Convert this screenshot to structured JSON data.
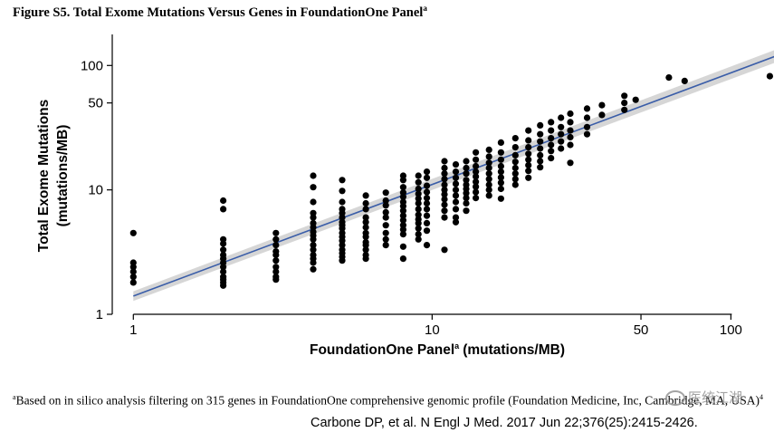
{
  "figure": {
    "title": "Figure S5. Total Exome Mutations Versus Genes in FoundationOne Panel",
    "title_superscript": "a"
  },
  "footnote": {
    "marker": "a",
    "text": "Based on in silico analysis filtering on 315 genes in FoundationOne comprehensive genomic profile (Foundation Medicine, Inc, Cambridge, MA, USA)",
    "ref": "4"
  },
  "citation": "Carbone DP, et al. N Engl J Med. 2017 Jun 22;376(25):2415-2426.",
  "watermark": "医统江湖",
  "chart_data": {
    "type": "scatter",
    "title": "Figure S5. Total Exome Mutations Versus Genes in FoundationOne Panel",
    "xlabel": "FoundationOne Panel",
    "xlabel_superscript": "a",
    "xlabel_unit": "(mutations/MB)",
    "ylabel_line1": "Total Exome Mutations",
    "ylabel_line2": "(mutations/MB)",
    "x_scale": "log",
    "y_scale": "log",
    "xlim": [
      0.85,
      130
    ],
    "ylim": [
      1,
      190
    ],
    "x_ticks": [
      1,
      10,
      50,
      100
    ],
    "x_tick_labels": [
      "1",
      "10",
      "50",
      "100"
    ],
    "y_ticks": [
      1,
      10,
      50,
      100
    ],
    "y_tick_labels": [
      "1",
      "10",
      "50",
      "100"
    ],
    "grid": false,
    "legend": "none",
    "point_color": "#000000",
    "fit_line_color": "#3a5da8",
    "ci_band_color": "#cfcfcf",
    "fit_line": {
      "x": [
        1,
        140
      ],
      "y": [
        1.4,
        118
      ]
    },
    "ci_band": {
      "x": [
        1,
        140
      ],
      "upper": [
        1.53,
        133
      ],
      "lower": [
        1.28,
        105
      ]
    },
    "points": [
      [
        1,
        4.5
      ],
      [
        1,
        2.6
      ],
      [
        1,
        2.4
      ],
      [
        1,
        2.2
      ],
      [
        1,
        2.0
      ],
      [
        1,
        1.8
      ],
      [
        2,
        8.2
      ],
      [
        2,
        7.0
      ],
      [
        2,
        4.0
      ],
      [
        2,
        3.7
      ],
      [
        2,
        3.3
      ],
      [
        2,
        3.0
      ],
      [
        2,
        2.8
      ],
      [
        2,
        2.6
      ],
      [
        2,
        2.4
      ],
      [
        2,
        2.2
      ],
      [
        2,
        2.0
      ],
      [
        2,
        1.9
      ],
      [
        2,
        1.8
      ],
      [
        2,
        1.7
      ],
      [
        3,
        4.5
      ],
      [
        3,
        4.0
      ],
      [
        3,
        3.6
      ],
      [
        3,
        3.2
      ],
      [
        3,
        3.0
      ],
      [
        3,
        2.7
      ],
      [
        3,
        2.4
      ],
      [
        3,
        2.2
      ],
      [
        3,
        2.0
      ],
      [
        3,
        1.9
      ],
      [
        4,
        13
      ],
      [
        4,
        10.5
      ],
      [
        4,
        8.0
      ],
      [
        4,
        6.5
      ],
      [
        4,
        6.0
      ],
      [
        4,
        5.4
      ],
      [
        4,
        5.0
      ],
      [
        4,
        4.6
      ],
      [
        4,
        4.3
      ],
      [
        4,
        4.0
      ],
      [
        4,
        3.6
      ],
      [
        4,
        3.3
      ],
      [
        4,
        3.0
      ],
      [
        4,
        2.8
      ],
      [
        4,
        2.6
      ],
      [
        4,
        2.3
      ],
      [
        5,
        12
      ],
      [
        5,
        9.8
      ],
      [
        5,
        8.0
      ],
      [
        5,
        7.0
      ],
      [
        5,
        6.5
      ],
      [
        5,
        6.0
      ],
      [
        5,
        5.5
      ],
      [
        5,
        5.2
      ],
      [
        5,
        4.9
      ],
      [
        5,
        4.5
      ],
      [
        5,
        4.2
      ],
      [
        5,
        3.9
      ],
      [
        5,
        3.6
      ],
      [
        5,
        3.3
      ],
      [
        5,
        3.1
      ],
      [
        5,
        2.9
      ],
      [
        5,
        2.7
      ],
      [
        6,
        9.0
      ],
      [
        6,
        7.8
      ],
      [
        6,
        7.0
      ],
      [
        6,
        6.0
      ],
      [
        6,
        5.5
      ],
      [
        6,
        5.0
      ],
      [
        6,
        4.5
      ],
      [
        6,
        4.2
      ],
      [
        6,
        3.8
      ],
      [
        6,
        3.6
      ],
      [
        6,
        3.3
      ],
      [
        6,
        3.0
      ],
      [
        6,
        2.8
      ],
      [
        7,
        9.5
      ],
      [
        7,
        8.2
      ],
      [
        7,
        7.5
      ],
      [
        7,
        6.6
      ],
      [
        7,
        6.0
      ],
      [
        7,
        5.2
      ],
      [
        7,
        4.5
      ],
      [
        7,
        4.0
      ],
      [
        7,
        3.6
      ],
      [
        8,
        13
      ],
      [
        8,
        12
      ],
      [
        8,
        10.5
      ],
      [
        8,
        9.5
      ],
      [
        8,
        8.8
      ],
      [
        8,
        8.0
      ],
      [
        8,
        7.4
      ],
      [
        8,
        6.8
      ],
      [
        8,
        6.2
      ],
      [
        8,
        5.7
      ],
      [
        8,
        5.2
      ],
      [
        8,
        4.8
      ],
      [
        8,
        4.4
      ],
      [
        8,
        3.5
      ],
      [
        8,
        2.8
      ],
      [
        9,
        13
      ],
      [
        9,
        11.5
      ],
      [
        9,
        10.2
      ],
      [
        9,
        9.3
      ],
      [
        9,
        8.5
      ],
      [
        9,
        7.8
      ],
      [
        9,
        7.0
      ],
      [
        9,
        6.3
      ],
      [
        9,
        5.8
      ],
      [
        9,
        5.4
      ],
      [
        9,
        4.9
      ],
      [
        9,
        4.4
      ],
      [
        9,
        4.0
      ],
      [
        9.6,
        14
      ],
      [
        9.6,
        12.5
      ],
      [
        9.6,
        10.8
      ],
      [
        9.6,
        9.6
      ],
      [
        9.6,
        8.6
      ],
      [
        9.6,
        7.8
      ],
      [
        9.6,
        7.0
      ],
      [
        9.6,
        6.2
      ],
      [
        9.6,
        5.4
      ],
      [
        9.6,
        4.7
      ],
      [
        9.6,
        3.6
      ],
      [
        11,
        17
      ],
      [
        11,
        15
      ],
      [
        11,
        13.5
      ],
      [
        11,
        12.2
      ],
      [
        11,
        11
      ],
      [
        11,
        10
      ],
      [
        11,
        9.2
      ],
      [
        11,
        8.4
      ],
      [
        11,
        7.6
      ],
      [
        11,
        6.8
      ],
      [
        11,
        6.0
      ],
      [
        11,
        3.3
      ],
      [
        12,
        16
      ],
      [
        12,
        14
      ],
      [
        12,
        12.5
      ],
      [
        12,
        11.2
      ],
      [
        12,
        10
      ],
      [
        12,
        9
      ],
      [
        12,
        8.0
      ],
      [
        12,
        7.0
      ],
      [
        12,
        6.0
      ],
      [
        12,
        5.5
      ],
      [
        13,
        17
      ],
      [
        13,
        15
      ],
      [
        13,
        13.5
      ],
      [
        13,
        12
      ],
      [
        13,
        11
      ],
      [
        13,
        10.2
      ],
      [
        13,
        9.4
      ],
      [
        13,
        8.6
      ],
      [
        13,
        7.8
      ],
      [
        13,
        6.8
      ],
      [
        14,
        20
      ],
      [
        14,
        17.5
      ],
      [
        14,
        15.5
      ],
      [
        14,
        14
      ],
      [
        14,
        12.8
      ],
      [
        14,
        11.6
      ],
      [
        14,
        10.6
      ],
      [
        14,
        9.6
      ],
      [
        14,
        8.6
      ],
      [
        15.5,
        21
      ],
      [
        15.5,
        18.5
      ],
      [
        15.5,
        16.5
      ],
      [
        15.5,
        15
      ],
      [
        15.5,
        13.5
      ],
      [
        15.5,
        12.2
      ],
      [
        15.5,
        11
      ],
      [
        15.5,
        10
      ],
      [
        15.5,
        9
      ],
      [
        17,
        24
      ],
      [
        17,
        20
      ],
      [
        17,
        17.5
      ],
      [
        17,
        15.5
      ],
      [
        17,
        14
      ],
      [
        17,
        12.6
      ],
      [
        17,
        11.4
      ],
      [
        17,
        10.2
      ],
      [
        17,
        8.5
      ],
      [
        19,
        26
      ],
      [
        19,
        22
      ],
      [
        19,
        19
      ],
      [
        19,
        16.8
      ],
      [
        19,
        15
      ],
      [
        19,
        13.5
      ],
      [
        19,
        12.2
      ],
      [
        19,
        11
      ],
      [
        21,
        30
      ],
      [
        21,
        25
      ],
      [
        21,
        22
      ],
      [
        21,
        19.5
      ],
      [
        21,
        17.5
      ],
      [
        21,
        15.8
      ],
      [
        21,
        14.2
      ],
      [
        21,
        12.5
      ],
      [
        23,
        33
      ],
      [
        23,
        28
      ],
      [
        23,
        24.5
      ],
      [
        23,
        21.5
      ],
      [
        23,
        19
      ],
      [
        23,
        17
      ],
      [
        23,
        15.2
      ],
      [
        25,
        35
      ],
      [
        25,
        30
      ],
      [
        25,
        26
      ],
      [
        25,
        23
      ],
      [
        25,
        20.5
      ],
      [
        25,
        18
      ],
      [
        27,
        38
      ],
      [
        27,
        32
      ],
      [
        27,
        28
      ],
      [
        27,
        24.5
      ],
      [
        27,
        21.5
      ],
      [
        29,
        41
      ],
      [
        29,
        35
      ],
      [
        29,
        30
      ],
      [
        29,
        26.5
      ],
      [
        29,
        23
      ],
      [
        29,
        16.5
      ],
      [
        33,
        45
      ],
      [
        33,
        38
      ],
      [
        33,
        32
      ],
      [
        33,
        28
      ],
      [
        37,
        48
      ],
      [
        37,
        40
      ],
      [
        44,
        57
      ],
      [
        44,
        50
      ],
      [
        44,
        44
      ],
      [
        48,
        53
      ],
      [
        62,
        80
      ],
      [
        70,
        75
      ],
      [
        135,
        82
      ]
    ]
  }
}
